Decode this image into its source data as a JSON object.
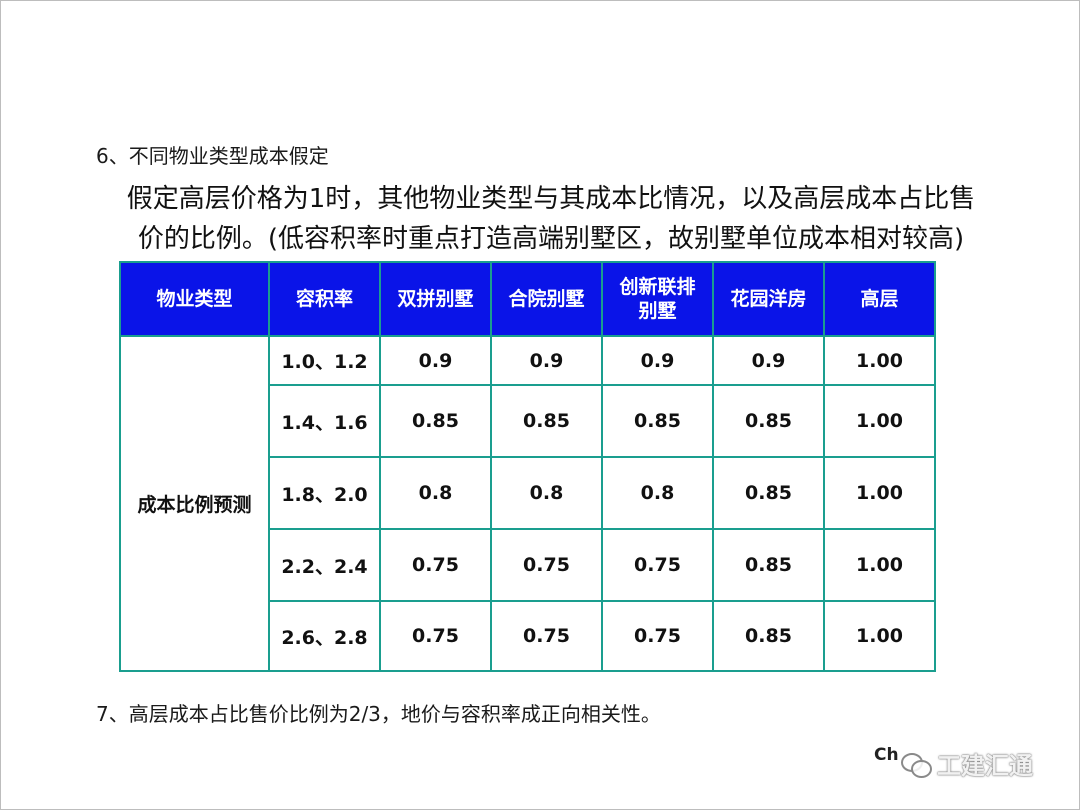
{
  "section6": "6、不同物业类型成本假定",
  "intro": {
    "line1": "假定高层价格为1时，其他物业类型与其成本比情况，以及高层成本占比售",
    "line2": "价的比例。(低容积率时重点打造高端别墅区，故别墅单位成本相对较高)"
  },
  "table": {
    "headers": [
      "物业类型",
      "容积率",
      "双拼别墅",
      "合院别墅",
      "创新联排别墅",
      "花园洋房",
      "高层"
    ],
    "header_line_split": {
      "col5_line1": "创新联排",
      "col5_line2": "别墅"
    },
    "row_label": "成本比例预测",
    "rows": [
      [
        "1.0、1.2",
        "0.9",
        "0.9",
        "0.9",
        "0.9",
        "1.00"
      ],
      [
        "1.4、1.6",
        "0.85",
        "0.85",
        "0.85",
        "0.85",
        "1.00"
      ],
      [
        "1.8、2.0",
        "0.8",
        "0.8",
        "0.8",
        "0.85",
        "1.00"
      ],
      [
        "2.2、2.4",
        "0.75",
        "0.75",
        "0.75",
        "0.85",
        "1.00"
      ],
      [
        "2.6、2.8",
        "0.75",
        "0.75",
        "0.75",
        "0.85",
        "1.00"
      ]
    ],
    "colors": {
      "header_bg": "#0a14e8",
      "border": "#1a9e8f"
    }
  },
  "section7": "7、高层成本占比售价比例为2/3，地价与容积率成正向相关性。",
  "footer_mark": "Ch",
  "watermark": {
    "text": "工建汇通",
    "icon": "wechat-icon"
  }
}
